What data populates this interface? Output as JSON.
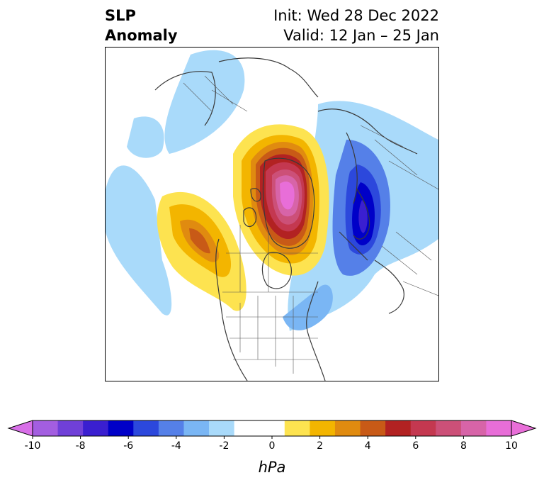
{
  "title": {
    "line1": "SLP",
    "line2": "Anomaly"
  },
  "subtitle": {
    "init": "Init: Wed 28 Dec 2022",
    "valid": "Valid: 12 Jan – 25 Jan"
  },
  "colorbar": {
    "unit": "hPa",
    "ticks": [
      "-10",
      "-8",
      "-6",
      "-4",
      "-2",
      "0",
      "2",
      "4",
      "6",
      "8",
      "10"
    ],
    "levels": [
      -10,
      -9,
      -8,
      -7,
      -6,
      -5,
      -4,
      -3,
      -2,
      -1,
      1,
      2,
      3,
      4,
      5,
      6,
      7,
      8,
      9,
      10
    ],
    "colors": {
      "low_extend": "#d86fe8",
      "bins": [
        "#a35ee0",
        "#7040d8",
        "#3a1fd0",
        "#0000c8",
        "#2c48dc",
        "#5580e8",
        "#7ab6f4",
        "#a9dafa",
        "#ffffff",
        "#ffffff",
        "#fde350",
        "#f3b500",
        "#e08b10",
        "#c85a17",
        "#b22222",
        "#c43850",
        "#cc5078",
        "#d764a8",
        "#e86ed8"
      ],
      "high_extend": "#e86ed8"
    }
  },
  "map": {
    "colors": {
      "coast": "#3a3a3a",
      "border": "#555555"
    }
  }
}
